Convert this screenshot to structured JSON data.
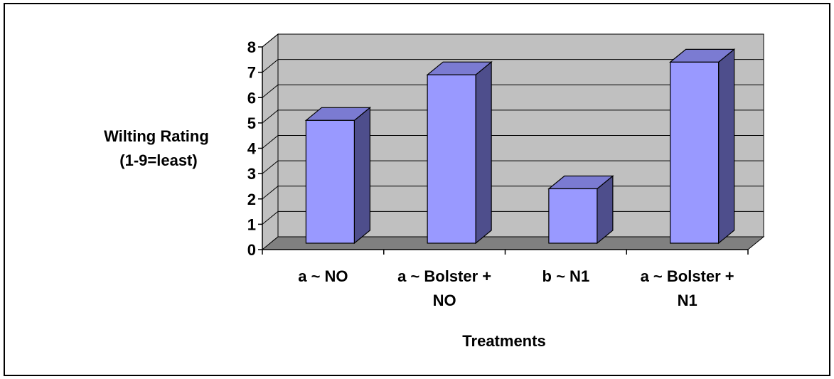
{
  "chart_data": {
    "type": "bar",
    "title": "",
    "ylabel_lines": [
      "Wilting Rating",
      "(1-9=least)"
    ],
    "xlabel": "Treatments",
    "ylim": [
      0,
      8
    ],
    "yticks": [
      "0",
      "1",
      "2",
      "3",
      "4",
      "5",
      "6",
      "7",
      "8"
    ],
    "categories": [
      [
        "a ~ NO"
      ],
      [
        "a ~ Bolster +",
        "NO"
      ],
      [
        "b ~ N1"
      ],
      [
        "a ~ Bolster +",
        "N1"
      ]
    ],
    "values": [
      5.1,
      6.9,
      2.4,
      7.4
    ],
    "grid": true,
    "legend": "none",
    "colors": {
      "bar_front": "#9999ff",
      "bar_top": "#7b7bd2",
      "bar_side": "#4e4e8c",
      "wall": "#c0c0c0",
      "floor": "#808080"
    }
  }
}
